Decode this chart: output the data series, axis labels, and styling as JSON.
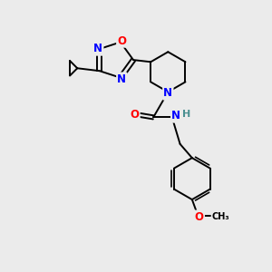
{
  "background_color": "#ebebeb",
  "atom_colors": {
    "N": "#0000ff",
    "O": "#ff0000",
    "C": "#000000",
    "H": "#4a9090"
  },
  "bond_color": "#000000",
  "font_size": 8.5,
  "lw": 1.4
}
